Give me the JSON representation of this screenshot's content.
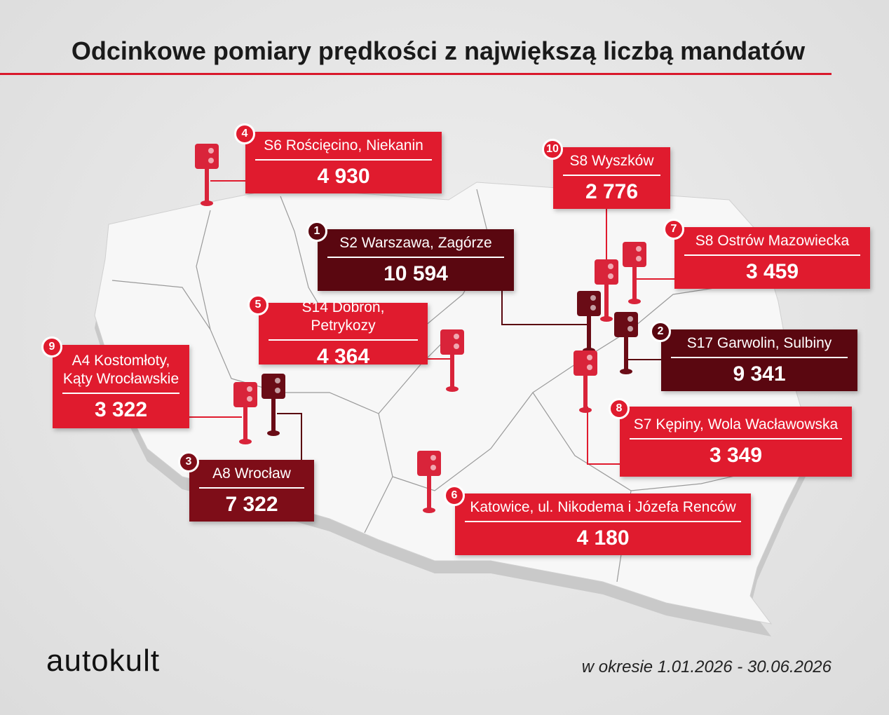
{
  "header": {
    "title": "Odcinkowe pomiary prędkości z największą liczbą mandatów"
  },
  "items": [
    {
      "rank": 4,
      "name": "S6 Rościęcino, Niekanin",
      "value": "4 930"
    },
    {
      "rank": 10,
      "name": "S8 Wyszków",
      "value": "2 776"
    },
    {
      "rank": 1,
      "name": "S2 Warszawa, Zagórze",
      "value": "10 594"
    },
    {
      "rank": 7,
      "name": "S8 Ostrów Mazowiecka",
      "value": "3 459"
    },
    {
      "rank": 5,
      "name": "S14 Dobroń, Petrykozy",
      "value": "4 364"
    },
    {
      "rank": 2,
      "name": "S17 Garwolin, Sulbiny",
      "value": "9 341"
    },
    {
      "rank": 9,
      "name": "A4 Kostomłoty, Kąty Wrocławskie",
      "value": "3 322"
    },
    {
      "rank": 8,
      "name": "S7 Kępiny, Wola Wacławowska",
      "value": "3 349"
    },
    {
      "rank": 3,
      "name": "A8 Wrocław",
      "value": "7 322"
    },
    {
      "rank": 6,
      "name": "Katowice, ul. Nikodema i Józefa Renców",
      "value": "4 180"
    }
  ],
  "footer": {
    "brand": "autokult",
    "period": "w okresie 1.01.2026 - 30.06.2026"
  }
}
